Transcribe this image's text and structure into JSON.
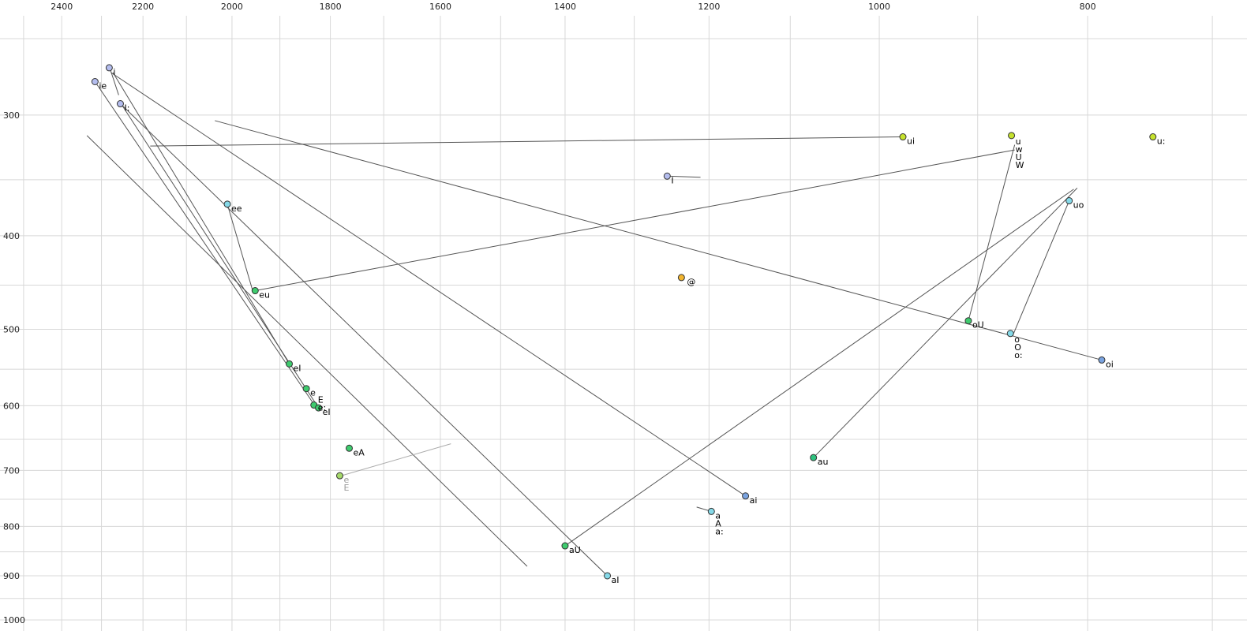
{
  "chart_data": {
    "type": "scatter",
    "title": "",
    "xlabel": "",
    "ylabel": "",
    "x_axis": {
      "position": "top",
      "scale": "log",
      "reversed": true,
      "domain": [
        2564,
        674.5
      ],
      "tick_labels": [
        2400,
        2200,
        2000,
        1800,
        1600,
        1400,
        1200,
        1000,
        800
      ],
      "gridlines": [
        2500,
        2400,
        2300,
        2200,
        2100,
        2000,
        1900,
        1800,
        1700,
        1600,
        1500,
        1400,
        1300,
        1200,
        1100,
        1000,
        900,
        800,
        700
      ]
    },
    "y_axis": {
      "position": "left",
      "scale": "log",
      "reversed": false,
      "domain": [
        228,
        1026.7
      ],
      "tick_labels": [
        300,
        400,
        500,
        600,
        700,
        800,
        900,
        1000
      ],
      "gridlines": [
        250,
        300,
        350,
        400,
        450,
        500,
        550,
        600,
        650,
        700,
        750,
        800,
        850,
        900,
        950,
        1000
      ]
    },
    "grid": {
      "on": true,
      "color": "#d8d8d8"
    },
    "line_color": "#555555",
    "tick_text_color": "#222222",
    "label_text_color": "#000000",
    "points": [
      {
        "name": "ie",
        "f2": 2316,
        "f1": 277,
        "color": "#b4bdee",
        "labels": [
          "ie"
        ]
      },
      {
        "name": "i",
        "f2": 2281,
        "f1": 268,
        "color": "#b4bdee",
        "labels": [
          "i"
        ]
      },
      {
        "name": "I-long",
        "f2": 2254,
        "f1": 292,
        "color": "#b4bdee",
        "labels": [
          "I:"
        ]
      },
      {
        "name": "ee",
        "f2": 2010,
        "f1": 371,
        "color": "#85d9e8",
        "labels": [
          "ee"
        ]
      },
      {
        "name": "eu",
        "f2": 1951,
        "f1": 456,
        "color": "#3ecb6e",
        "labels": [
          "eu"
        ]
      },
      {
        "name": "eI",
        "f2": 1881,
        "f1": 543,
        "color": "#3ecb6e",
        "labels": [
          "eI"
        ]
      },
      {
        "name": "e",
        "f2": 1847,
        "f1": 576,
        "color": "#3ecb6e",
        "labels": [
          "e"
        ]
      },
      {
        "name": "E-e-long",
        "f2": 1832,
        "f1": 599,
        "color": "#3ecb6e",
        "labels": [
          "E",
          "e:"
        ],
        "label_dy": -3
      },
      {
        "name": "eI-2",
        "f2": 1823,
        "f1": 603,
        "color": "#3ecb6e",
        "labels": [
          "eI"
        ]
      },
      {
        "name": "eA",
        "f2": 1764,
        "f1": 664,
        "color": "#3ecb6e",
        "labels": [
          "eA"
        ]
      },
      {
        "name": "e-gray",
        "f2": 1782,
        "f1": 709,
        "color": "#a5d96a",
        "labels": [
          "e",
          "E"
        ],
        "label_color": "#9a9a9a"
      },
      {
        "name": "aU",
        "f2": 1400,
        "f1": 838,
        "color": "#3ecb6e",
        "labels": [
          "aU"
        ]
      },
      {
        "name": "aI",
        "f2": 1338,
        "f1": 900,
        "color": "#85d9e8",
        "labels": [
          "aI"
        ]
      },
      {
        "name": "ai",
        "f2": 1154,
        "f1": 744,
        "color": "#7aa3e0",
        "labels": [
          "ai"
        ]
      },
      {
        "name": "a-A-a-long",
        "f2": 1197,
        "f1": 772,
        "color": "#85d9e8",
        "labels": [
          "a",
          "A",
          "a:"
        ]
      },
      {
        "name": "au",
        "f2": 1073,
        "f1": 679,
        "color": "#2ec27e",
        "labels": [
          "au"
        ]
      },
      {
        "name": "schwa",
        "f2": 1236,
        "f1": 442,
        "color": "#f2b52f",
        "labels": [
          "@"
        ],
        "label_dx": 7
      },
      {
        "name": "I",
        "f2": 1255,
        "f1": 347,
        "color": "#b4bdee",
        "labels": [
          "I"
        ]
      },
      {
        "name": "ui",
        "f2": 975,
        "f1": 316,
        "color": "#c6e22e",
        "labels": [
          "ui"
        ]
      },
      {
        "name": "u-w-U-W",
        "f2": 868,
        "f1": 315,
        "color": "#c6e22e",
        "labels": [
          "u",
          "w",
          "U",
          "W"
        ],
        "label_dy": 11
      },
      {
        "name": "u-long",
        "f2": 746,
        "f1": 316,
        "color": "#c6e22e",
        "labels": [
          "u:"
        ]
      },
      {
        "name": "uo",
        "f2": 816,
        "f1": 368,
        "color": "#85d9e8",
        "labels": [
          "uo"
        ]
      },
      {
        "name": "oU",
        "f2": 909,
        "f1": 490,
        "color": "#3ecb6e",
        "labels": [
          "oU"
        ]
      },
      {
        "name": "o-O-o-long",
        "f2": 869,
        "f1": 505,
        "color": "#85d9e8",
        "labels": [
          "o",
          "O",
          "o:"
        ],
        "label_dy": 11
      },
      {
        "name": "oi",
        "f2": 788,
        "f1": 538,
        "color": "#7aa3e0",
        "labels": [
          "oi"
        ]
      }
    ],
    "segments": [
      {
        "name": "ui",
        "from": [
          975,
          316
        ],
        "to": [
          2183,
          323
        ]
      },
      {
        "name": "oi",
        "from": [
          788,
          538
        ],
        "to": [
          2037,
          304
        ]
      },
      {
        "name": "eu",
        "from": [
          1951,
          456
        ],
        "to": [
          865,
          326
        ]
      },
      {
        "name": "ie",
        "from": [
          2316,
          277
        ],
        "to": [
          1831,
          599
        ]
      },
      {
        "name": "ei",
        "from": [
          1881,
          543
        ],
        "to": [
          2272,
          271
        ]
      },
      {
        "name": "eI",
        "from": [
          1823,
          603
        ],
        "to": [
          2250,
          293
        ]
      },
      {
        "name": "aI",
        "from": [
          1338,
          900
        ],
        "to": [
          2250,
          293
        ]
      },
      {
        "name": "ai",
        "from": [
          1154,
          744
        ],
        "to": [
          2277,
          271
        ]
      },
      {
        "name": "aU",
        "from": [
          1400,
          838
        ],
        "to": [
          812,
          358
        ]
      },
      {
        "name": "au",
        "from": [
          1073,
          679
        ],
        "to": [
          809,
          357
        ]
      },
      {
        "name": "oU",
        "from": [
          909,
          490
        ],
        "to": [
          865,
          322
        ]
      },
      {
        "name": "uo",
        "from": [
          816,
          368
        ],
        "to": [
          866,
          505
        ]
      },
      {
        "name": "unlabeled",
        "from": [
          2336,
          315
        ],
        "to": [
          1458,
          880
        ]
      },
      {
        "name": "ee",
        "from": [
          2010,
          371
        ],
        "to": [
          1955,
          458
        ]
      },
      {
        "name": "i-tick",
        "from": [
          2281,
          267
        ],
        "to": [
          2258,
          286
        ]
      },
      {
        "name": "I-tick",
        "from": [
          1255,
          347
        ],
        "to": [
          1211,
          348
        ]
      },
      {
        "name": "a-tick",
        "from": [
          1197,
          772
        ],
        "to": [
          1216,
          764
        ]
      },
      {
        "name": "e-gray-tick",
        "from": [
          1779,
          709
        ],
        "to": [
          1582,
          657
        ],
        "color": "#ababab"
      }
    ]
  }
}
